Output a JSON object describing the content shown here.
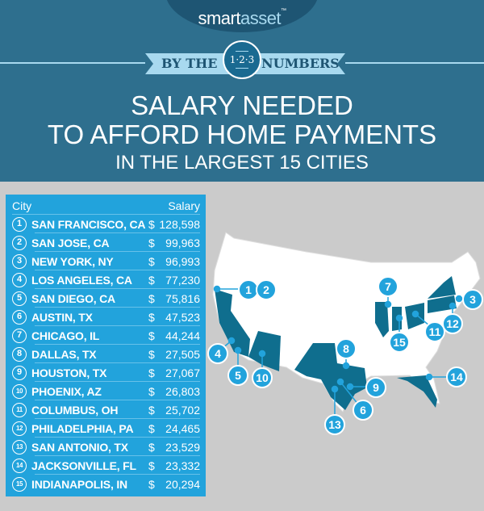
{
  "header": {
    "logo_part1": "smart",
    "logo_part2": "asset",
    "logo_tm": "™",
    "ribbon_left": "BY THE",
    "badge": "1·2·3",
    "ribbon_right": "NUMBERS",
    "title_line1": "SALARY NEEDED",
    "title_line2": "TO AFFORD HOME PAYMENTS",
    "title_line3": "IN THE LARGEST 15 CITIES"
  },
  "colors": {
    "header_bg": "#2e6f8e",
    "table_bg": "#22a3dc",
    "highlight_state": "#0f6e8e",
    "page_bg": "#cbcbcb"
  },
  "table": {
    "col_city": "City",
    "col_salary": "Salary",
    "rows": [
      {
        "rank": "1",
        "city": "SAN FRANCISCO, CA",
        "currency": "$",
        "salary": "128,598"
      },
      {
        "rank": "2",
        "city": "SAN JOSE, CA",
        "currency": "$",
        "salary": "99,963"
      },
      {
        "rank": "3",
        "city": "NEW YORK, NY",
        "currency": "$",
        "salary": "96,993"
      },
      {
        "rank": "4",
        "city": "LOS ANGELES, CA",
        "currency": "$",
        "salary": "77,230"
      },
      {
        "rank": "5",
        "city": "SAN DIEGO, CA",
        "currency": "$",
        "salary": "75,816"
      },
      {
        "rank": "6",
        "city": "AUSTIN, TX",
        "currency": "$",
        "salary": "47,523"
      },
      {
        "rank": "7",
        "city": "CHICAGO, IL",
        "currency": "$",
        "salary": "44,244"
      },
      {
        "rank": "8",
        "city": "DALLAS, TX",
        "currency": "$",
        "salary": "27,505"
      },
      {
        "rank": "9",
        "city": "HOUSTON, TX",
        "currency": "$",
        "salary": "27,067"
      },
      {
        "rank": "10",
        "city": "PHOENIX, AZ",
        "currency": "$",
        "salary": "26,803"
      },
      {
        "rank": "11",
        "city": "COLUMBUS, OH",
        "currency": "$",
        "salary": "25,702"
      },
      {
        "rank": "12",
        "city": "PHILADELPHIA, PA",
        "currency": "$",
        "salary": "24,465"
      },
      {
        "rank": "13",
        "city": "SAN ANTONIO, TX",
        "currency": "$",
        "salary": "23,529"
      },
      {
        "rank": "14",
        "city": "JACKSONVILLE, FL",
        "currency": "$",
        "salary": "23,332"
      },
      {
        "rank": "15",
        "city": "INDIANAPOLIS, IN",
        "currency": "$",
        "salary": "20,294"
      }
    ]
  },
  "map": {
    "highlighted_states": [
      "CA",
      "AZ",
      "TX",
      "IL",
      "IN",
      "OH",
      "PA",
      "NY",
      "FL"
    ],
    "pins": [
      "1",
      "2",
      "3",
      "4",
      "5",
      "6",
      "7",
      "8",
      "9",
      "10",
      "11",
      "12",
      "13",
      "14",
      "15"
    ]
  }
}
